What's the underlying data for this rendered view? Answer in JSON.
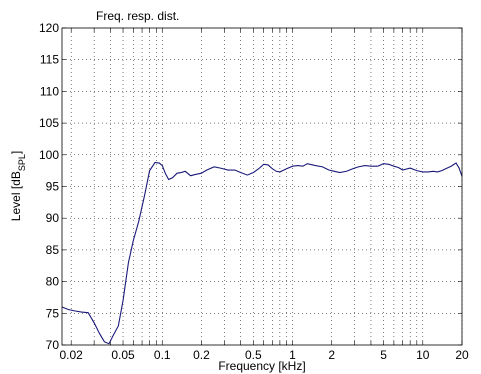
{
  "chart_data": {
    "type": "line",
    "title": "Freq. resp. dist.",
    "xlabel": "Frequency [kHz]",
    "ylabel": {
      "main": "Level [dB",
      "sub": "SPL",
      "close": "]"
    },
    "x_scale": "log",
    "xlim": [
      0.017,
      20
    ],
    "ylim": [
      70,
      120
    ],
    "grid": true,
    "x_ticks": [
      {
        "value": 0.02,
        "label": "0.02"
      },
      {
        "value": 0.05,
        "label": "0.05"
      },
      {
        "value": 0.1,
        "label": "0.1"
      },
      {
        "value": 0.2,
        "label": "0.2"
      },
      {
        "value": 0.5,
        "label": "0.5"
      },
      {
        "value": 1,
        "label": "1"
      },
      {
        "value": 2,
        "label": "2"
      },
      {
        "value": 5,
        "label": "5"
      },
      {
        "value": 10,
        "label": "10"
      },
      {
        "value": 20,
        "label": "20"
      }
    ],
    "y_ticks": [
      {
        "value": 70,
        "label": "70"
      },
      {
        "value": 75,
        "label": "75"
      },
      {
        "value": 80,
        "label": "80"
      },
      {
        "value": 85,
        "label": "85"
      },
      {
        "value": 90,
        "label": "90"
      },
      {
        "value": 95,
        "label": "95"
      },
      {
        "value": 100,
        "label": "100"
      },
      {
        "value": 105,
        "label": "105"
      },
      {
        "value": 110,
        "label": "110"
      },
      {
        "value": 115,
        "label": "115"
      },
      {
        "value": 120,
        "label": "120"
      }
    ],
    "series": [
      {
        "color": "#1a1a7a",
        "x": [
          0.017,
          0.019,
          0.021,
          0.024,
          0.027,
          0.03,
          0.033,
          0.036,
          0.039,
          0.042,
          0.046,
          0.05,
          0.055,
          0.06,
          0.066,
          0.073,
          0.08,
          0.088,
          0.095,
          0.1,
          0.106,
          0.112,
          0.12,
          0.13,
          0.14,
          0.15,
          0.165,
          0.18,
          0.2,
          0.22,
          0.25,
          0.28,
          0.32,
          0.36,
          0.4,
          0.45,
          0.5,
          0.55,
          0.6,
          0.65,
          0.7,
          0.75,
          0.8,
          0.9,
          1.0,
          1.1,
          1.2,
          1.3,
          1.5,
          1.7,
          1.9,
          2.1,
          2.3,
          2.6,
          2.9,
          3.2,
          3.6,
          4.0,
          4.5,
          5.0,
          5.5,
          6.0,
          6.5,
          7.0,
          8.0,
          9.0,
          10.0,
          11.0,
          12.0,
          13.0,
          14.0,
          15.0,
          16.5,
          18.0,
          19.0,
          20.0
        ],
        "y": [
          76,
          75.6,
          75.4,
          75.2,
          75.1,
          73.5,
          71.8,
          70.5,
          70.2,
          71.5,
          73,
          77,
          83,
          86.5,
          89.5,
          93.5,
          97.5,
          98.8,
          98.7,
          98.3,
          97,
          96.1,
          96.4,
          97.1,
          97.2,
          97.4,
          96.7,
          96.9,
          97.1,
          97.6,
          98.1,
          97.9,
          97.6,
          97.6,
          97.2,
          96.8,
          97.2,
          97.8,
          98.5,
          98.4,
          97.8,
          97.4,
          97.3,
          97.8,
          98.2,
          98.3,
          98.2,
          98.6,
          98.3,
          98.1,
          97.6,
          97.4,
          97.2,
          97.4,
          97.8,
          98.1,
          98.3,
          98.2,
          98.2,
          98.6,
          98.5,
          98.2,
          98.0,
          97.6,
          97.9,
          97.5,
          97.3,
          97.3,
          97.4,
          97.3,
          97.5,
          97.8,
          98.2,
          98.7,
          97.9,
          96.6
        ]
      }
    ]
  }
}
